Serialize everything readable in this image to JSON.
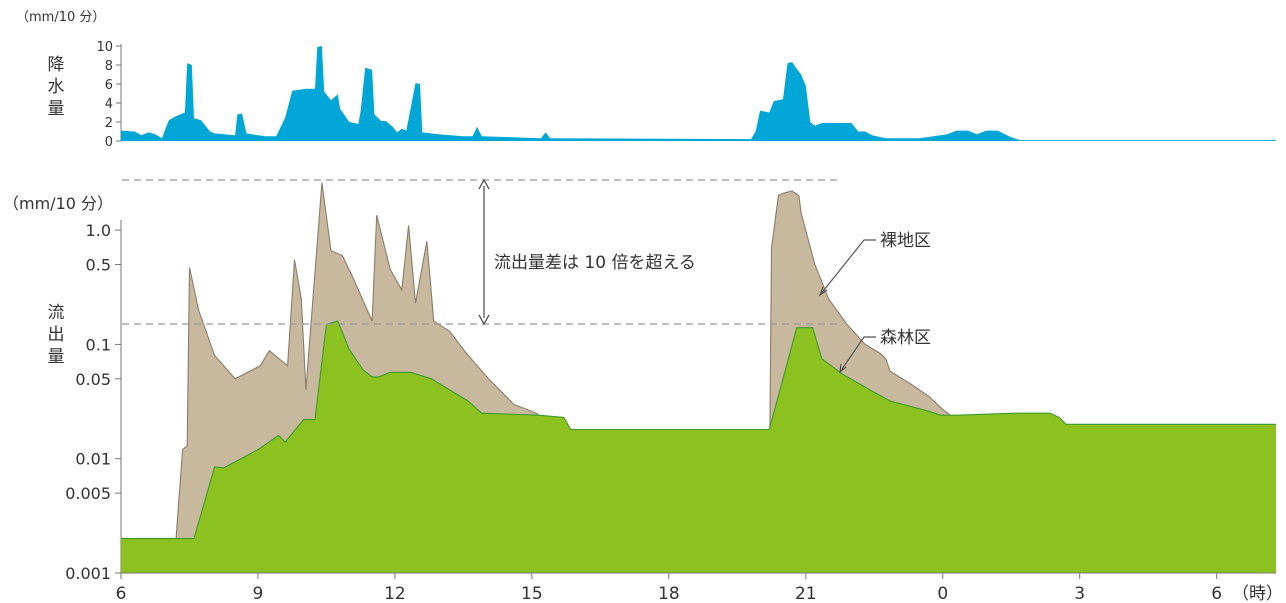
{
  "chart_data": [
    {
      "type": "area",
      "ylabel": "降水量",
      "yunit": "（mm/10 分）",
      "ylim": [
        0,
        10
      ],
      "yticks": [
        0,
        2,
        4,
        6,
        8,
        10
      ],
      "series": [
        {
          "color": "#00a6d6",
          "points": [
            [
              6,
              1.1
            ],
            [
              6.3,
              1.0
            ],
            [
              6.45,
              0.6
            ],
            [
              6.6,
              0.9
            ],
            [
              6.75,
              0.7
            ],
            [
              6.9,
              0.3
            ],
            [
              6.95,
              1.0
            ],
            [
              7.05,
              2.2
            ],
            [
              7.2,
              2.6
            ],
            [
              7.4,
              3.0
            ],
            [
              7.45,
              8.2
            ],
            [
              7.55,
              8.0
            ],
            [
              7.6,
              2.4
            ],
            [
              7.75,
              2.2
            ],
            [
              7.95,
              1.0
            ],
            [
              8.05,
              0.8
            ],
            [
              8.5,
              0.6
            ],
            [
              8.55,
              2.8
            ],
            [
              8.65,
              2.9
            ],
            [
              8.75,
              0.8
            ],
            [
              9.15,
              0.5
            ],
            [
              9.4,
              0.5
            ],
            [
              9.6,
              2.5
            ],
            [
              9.75,
              5.3
            ],
            [
              10.05,
              5.5
            ],
            [
              10.25,
              5.5
            ],
            [
              10.3,
              9.9
            ],
            [
              10.4,
              10
            ],
            [
              10.45,
              5.2
            ],
            [
              10.6,
              4.3
            ],
            [
              10.75,
              4.9
            ],
            [
              10.8,
              3.4
            ],
            [
              11,
              2.0
            ],
            [
              11.2,
              1.8
            ],
            [
              11.25,
              3.2
            ],
            [
              11.35,
              7.7
            ],
            [
              11.5,
              7.5
            ],
            [
              11.55,
              2.8
            ],
            [
              11.7,
              2.1
            ],
            [
              11.8,
              2.1
            ],
            [
              11.95,
              1.5
            ],
            [
              12.05,
              0.9
            ],
            [
              12.15,
              1.3
            ],
            [
              12.25,
              1.1
            ],
            [
              12.45,
              6.1
            ],
            [
              12.55,
              6.0
            ],
            [
              12.6,
              0.9
            ],
            [
              12.95,
              0.7
            ],
            [
              13.5,
              0.5
            ],
            [
              13.7,
              0.5
            ],
            [
              13.8,
              1.5
            ],
            [
              13.9,
              0.5
            ],
            [
              15.2,
              0.3
            ],
            [
              15.3,
              0.9
            ],
            [
              15.4,
              0.3
            ],
            [
              19.8,
              0.2
            ],
            [
              19.9,
              1.0
            ],
            [
              20,
              3.2
            ],
            [
              20.2,
              3.0
            ],
            [
              20.3,
              4.2
            ],
            [
              20.5,
              4.4
            ],
            [
              20.6,
              8.2
            ],
            [
              20.7,
              8.3
            ],
            [
              20.8,
              7.6
            ],
            [
              20.9,
              7.0
            ],
            [
              21,
              5.8
            ],
            [
              21.1,
              2.0
            ],
            [
              21.2,
              1.6
            ],
            [
              21.35,
              1.9
            ],
            [
              21.5,
              1.9
            ],
            [
              21.9,
              1.9
            ],
            [
              22,
              1.9
            ],
            [
              22.15,
              1.0
            ],
            [
              22.3,
              1.0
            ],
            [
              22.45,
              0.6
            ],
            [
              22.75,
              0.3
            ],
            [
              23.5,
              0.3
            ],
            [
              24.1,
              0.7
            ],
            [
              24.3,
              1.1
            ],
            [
              24.55,
              1.1
            ],
            [
              24.75,
              0.7
            ],
            [
              24.95,
              1.1
            ],
            [
              25.2,
              1.1
            ],
            [
              25.5,
              0.4
            ],
            [
              25.7,
              0.1
            ],
            [
              31.3,
              0.1
            ]
          ]
        }
      ]
    },
    {
      "type": "area",
      "ylabel": "流出量",
      "yunit": "（mm/10 分）",
      "yscale": "log",
      "ylim": [
        0.001,
        3
      ],
      "yticks": [
        0.001,
        0.005,
        0.01,
        0.05,
        0.1,
        0.5,
        1.0
      ],
      "ytick_labels": [
        "0.001",
        "0.005",
        "0.01",
        "0.05",
        "0.1",
        "0.5",
        "1.0"
      ],
      "xlabel": "（時）",
      "xticks": [
        "6",
        "9",
        "12",
        "15",
        "18",
        "21",
        "0",
        "3",
        "6"
      ],
      "xtick_values": [
        6,
        9,
        12,
        15,
        18,
        21,
        24,
        27,
        30
      ],
      "xlim": [
        6,
        31.3
      ],
      "series": [
        {
          "name": "裸地区",
          "color": "#c8b99e",
          "stroke": "#8c7b6a",
          "points": [
            [
              6,
              0.001
            ],
            [
              7.15,
              0.001
            ],
            [
              7.35,
              0.012
            ],
            [
              7.45,
              0.013
            ],
            [
              7.5,
              0.47
            ],
            [
              7.7,
              0.2
            ],
            [
              8.05,
              0.08
            ],
            [
              8.5,
              0.05
            ],
            [
              9.05,
              0.065
            ],
            [
              9.25,
              0.088
            ],
            [
              9.65,
              0.065
            ],
            [
              9.8,
              0.55
            ],
            [
              9.95,
              0.25
            ],
            [
              10.05,
              0.04
            ],
            [
              10.4,
              2.6
            ],
            [
              10.6,
              0.66
            ],
            [
              10.85,
              0.6
            ],
            [
              11.1,
              0.37
            ],
            [
              11.5,
              0.16
            ],
            [
              11.6,
              1.35
            ],
            [
              11.9,
              0.45
            ],
            [
              12.15,
              0.3
            ],
            [
              12.3,
              1.1
            ],
            [
              12.45,
              0.23
            ],
            [
              12.7,
              0.8
            ],
            [
              12.85,
              0.16
            ],
            [
              13.2,
              0.13
            ],
            [
              13.55,
              0.085
            ],
            [
              14.05,
              0.05
            ],
            [
              14.6,
              0.03
            ],
            [
              15.1,
              0.025
            ],
            [
              15.6,
              0.018
            ],
            [
              16.1,
              0.015
            ],
            [
              16.4,
              0.013
            ],
            [
              17.1,
              0.013
            ],
            [
              17.2,
              0.01
            ],
            [
              18.9,
              0.01
            ],
            [
              19.0,
              0.0072
            ],
            [
              19.6,
              0.0072
            ],
            [
              20.2,
              0.0048
            ],
            [
              20.25,
              0.7
            ],
            [
              20.4,
              2.0
            ],
            [
              20.5,
              2.1
            ],
            [
              20.7,
              2.2
            ],
            [
              20.85,
              2.0
            ],
            [
              20.9,
              1.4
            ],
            [
              21.2,
              0.5
            ],
            [
              21.5,
              0.25
            ],
            [
              21.9,
              0.15
            ],
            [
              22.3,
              0.1
            ],
            [
              22.6,
              0.085
            ],
            [
              22.75,
              0.075
            ],
            [
              22.85,
              0.058
            ],
            [
              23.3,
              0.045
            ],
            [
              23.7,
              0.035
            ],
            [
              24.0,
              0.027
            ],
            [
              24.3,
              0.022
            ],
            [
              24.9,
              0.022
            ],
            [
              25.0,
              0.018
            ],
            [
              25.85,
              0.018
            ],
            [
              26.1,
              0.015
            ],
            [
              26.6,
              0.015
            ],
            [
              26.8,
              0.013
            ],
            [
              28.0,
              0.013
            ],
            [
              28.3,
              0.01
            ],
            [
              30.1,
              0.01
            ],
            [
              30.35,
              0.0072
            ],
            [
              31.3,
              0.0072
            ]
          ]
        },
        {
          "name": "森林区",
          "color": "#8cc21f",
          "stroke": "#3d9a2a",
          "points": [
            [
              6,
              0.002
            ],
            [
              7.6,
              0.002
            ],
            [
              8.05,
              0.0085
            ],
            [
              8.25,
              0.0083
            ],
            [
              9.0,
              0.012
            ],
            [
              9.45,
              0.016
            ],
            [
              9.6,
              0.014
            ],
            [
              10.0,
              0.022
            ],
            [
              10.25,
              0.022
            ],
            [
              10.5,
              0.15
            ],
            [
              10.75,
              0.16
            ],
            [
              11.0,
              0.09
            ],
            [
              11.3,
              0.06
            ],
            [
              11.5,
              0.052
            ],
            [
              11.65,
              0.052
            ],
            [
              11.9,
              0.057
            ],
            [
              12.35,
              0.057
            ],
            [
              12.8,
              0.05
            ],
            [
              13.6,
              0.032
            ],
            [
              13.9,
              0.025
            ],
            [
              15.15,
              0.024
            ],
            [
              15.7,
              0.023
            ],
            [
              15.85,
              0.018
            ],
            [
              20.2,
              0.018
            ],
            [
              20.5,
              0.05
            ],
            [
              20.8,
              0.14
            ],
            [
              21.15,
              0.14
            ],
            [
              21.35,
              0.075
            ],
            [
              21.8,
              0.055
            ],
            [
              22.5,
              0.038
            ],
            [
              22.85,
              0.032
            ],
            [
              23.7,
              0.026
            ],
            [
              23.95,
              0.024
            ],
            [
              24.3,
              0.024
            ],
            [
              25.6,
              0.025
            ],
            [
              26.35,
              0.025
            ],
            [
              26.55,
              0.023
            ],
            [
              26.7,
              0.02
            ],
            [
              31.3,
              0.02
            ]
          ]
        }
      ],
      "annotations": [
        {
          "text": "流出量差は 10 倍を超える"
        },
        {
          "text": "裸地区"
        },
        {
          "text": "森林区"
        }
      ]
    }
  ]
}
